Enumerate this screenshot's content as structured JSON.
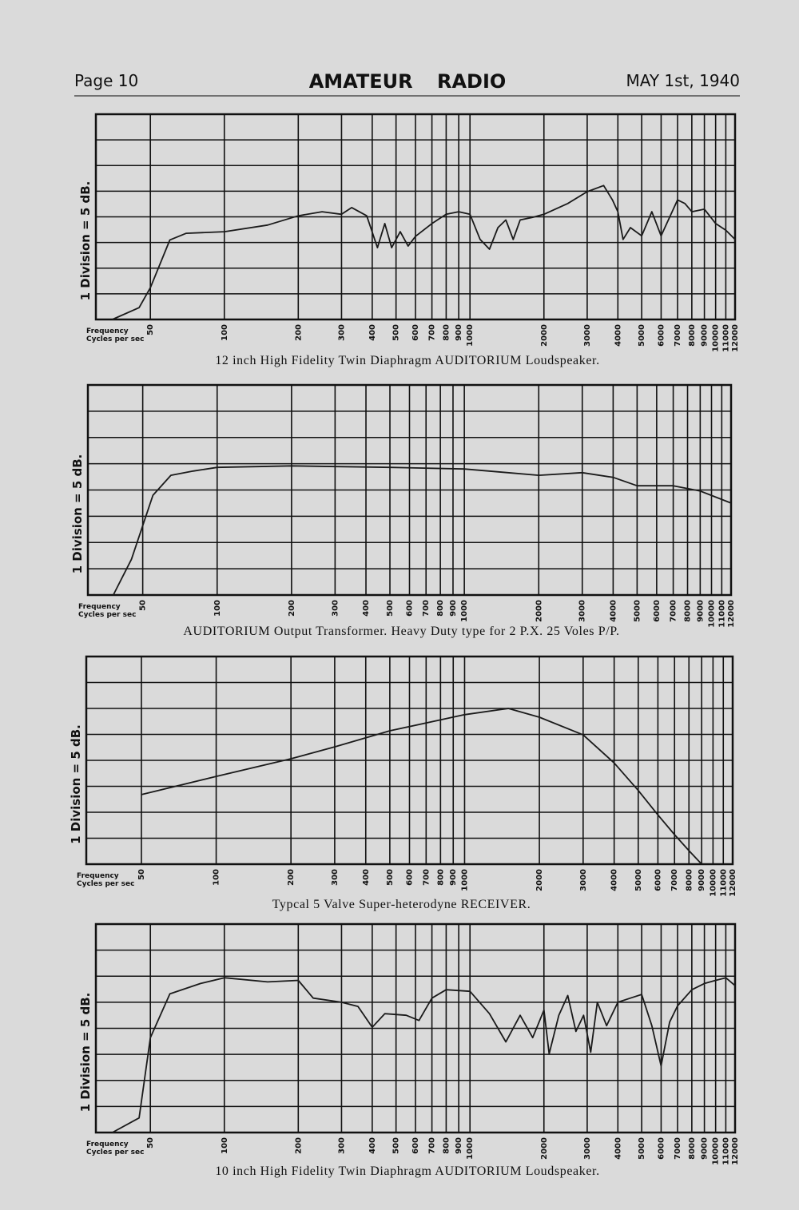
{
  "header": {
    "page": "Page 10",
    "title": "AMATEUR RADIO",
    "date": "MAY 1st, 1940"
  },
  "chart_data": [
    {
      "type": "line",
      "title": "12 inch High Fidelity Twin Diaphragm AUDITORIUM Loudspeaker.",
      "y_label": "1 Division = 5 dB.",
      "x_label": [
        "Frequency",
        "Cycles per sec"
      ],
      "log_x": true,
      "xlim": [
        30,
        12000
      ],
      "ylim": [
        0,
        40
      ],
      "xticks": [
        50,
        100,
        200,
        300,
        400,
        500,
        600,
        700,
        800,
        900,
        1000,
        2000,
        3000,
        4000,
        5000,
        6000,
        7000,
        8000,
        9000,
        10000,
        11000,
        12000
      ],
      "ygrid": [
        5,
        10,
        15,
        20,
        25,
        30,
        35
      ],
      "color": "#1a1a1a",
      "x": [
        35,
        45,
        50,
        60,
        70,
        100,
        150,
        200,
        250,
        300,
        330,
        380,
        420,
        450,
        480,
        520,
        560,
        600,
        700,
        800,
        900,
        1000,
        1100,
        1200,
        1300,
        1400,
        1500,
        1600,
        1800,
        2000,
        2500,
        3000,
        3500,
        3800,
        4000,
        4200,
        4500,
        5000,
        5500,
        6000,
        7000,
        7500,
        8000,
        9000,
        10000,
        11000,
        12000
      ],
      "values": [
        0,
        2.3,
        6.2,
        15.5,
        16.8,
        17.1,
        18.4,
        20.2,
        21,
        20.5,
        21.8,
        20.2,
        14,
        18.7,
        14,
        17.1,
        14.3,
        16.2,
        18.7,
        20.5,
        21,
        20.5,
        15.6,
        13.7,
        17.9,
        19.4,
        15.6,
        19.4,
        19.9,
        20.5,
        22.6,
        24.9,
        26.1,
        23.3,
        21,
        15.6,
        17.9,
        16.3,
        21,
        16.3,
        23.3,
        22.6,
        21,
        21.5,
        18.7,
        17.4,
        15.6
      ]
    },
    {
      "type": "line",
      "title": "AUDITORIUM Output Transformer.  Heavy Duty type for 2 P.X. 25 Voles P/P.",
      "y_label": "1 Division = 5 dB.",
      "x_label": [
        "Frequency",
        "Cycles per sec"
      ],
      "log_x": true,
      "xlim": [
        30,
        12000
      ],
      "ylim": [
        0,
        40
      ],
      "xticks": [
        50,
        100,
        200,
        300,
        400,
        500,
        600,
        700,
        800,
        900,
        1000,
        2000,
        3000,
        4000,
        5000,
        6000,
        7000,
        8000,
        9000,
        10000,
        11000,
        12000
      ],
      "ygrid": [
        5,
        10,
        15,
        20,
        25,
        30,
        35
      ],
      "color": "#1a1a1a",
      "x": [
        38,
        45,
        55,
        65,
        80,
        100,
        200,
        500,
        1000,
        1500,
        2000,
        3000,
        4000,
        5000,
        7000,
        9000,
        12000
      ],
      "values": [
        0,
        6.8,
        19,
        22.8,
        23.6,
        24.3,
        24.6,
        24.3,
        24,
        23.3,
        22.8,
        23.3,
        22.4,
        20.8,
        20.8,
        19.8,
        17.5
      ]
    },
    {
      "type": "line",
      "title": "Typcal 5 Valve Super-heterodyne RECEIVER.",
      "y_label": "1 Division = 5 dB.",
      "x_label": [
        "Frequency",
        "Cycles per sec"
      ],
      "log_x": true,
      "xlim": [
        30,
        12000
      ],
      "ylim": [
        0,
        40
      ],
      "xticks": [
        50,
        100,
        200,
        300,
        400,
        500,
        600,
        700,
        800,
        900,
        1000,
        2000,
        3000,
        4000,
        5000,
        6000,
        7000,
        8000,
        9000,
        10000,
        11000,
        12000
      ],
      "ygrid": [
        5,
        10,
        15,
        20,
        25,
        30,
        35
      ],
      "color": "#1a1a1a",
      "x": [
        50,
        100,
        200,
        300,
        500,
        1000,
        1500,
        2000,
        3000,
        4000,
        5000,
        6000,
        7000,
        8000,
        9000
      ],
      "values": [
        13.4,
        16.9,
        20.3,
        22.6,
        25.7,
        28.8,
        30,
        28.3,
        24.9,
        19.5,
        14.2,
        9.5,
        5.7,
        2.6,
        0
      ]
    },
    {
      "type": "line",
      "title": "10 inch High Fidelity Twin Diaphragm AUDITORIUM Loudspeaker.",
      "y_label": "1 Division = 5 dB.",
      "x_label": [
        "Frequency",
        "Cycles per sec"
      ],
      "log_x": true,
      "xlim": [
        30,
        12000
      ],
      "ylim": [
        0,
        40
      ],
      "xticks": [
        50,
        100,
        200,
        300,
        400,
        500,
        600,
        700,
        800,
        900,
        1000,
        2000,
        3000,
        4000,
        5000,
        6000,
        7000,
        8000,
        9000,
        10000,
        11000,
        12000
      ],
      "ygrid": [
        5,
        10,
        15,
        20,
        25,
        30,
        35
      ],
      "color": "#1a1a1a",
      "x": [
        35,
        45,
        50,
        60,
        80,
        100,
        150,
        200,
        230,
        300,
        350,
        400,
        450,
        550,
        620,
        700,
        800,
        1000,
        1200,
        1400,
        1600,
        1800,
        2000,
        2100,
        2300,
        2500,
        2700,
        2900,
        3100,
        3300,
        3600,
        4000,
        4500,
        5000,
        5500,
        6000,
        6500,
        7000,
        8000,
        9000,
        10000,
        11000,
        12000
      ],
      "values": [
        0,
        2.8,
        18.2,
        26.6,
        28.6,
        29.7,
        28.9,
        29.2,
        25.8,
        25,
        24.2,
        20.2,
        22.8,
        22.5,
        21.5,
        25.8,
        27.4,
        27.1,
        22.8,
        17.4,
        22.5,
        18.2,
        23.5,
        15.1,
        22.5,
        26.3,
        19.4,
        22.5,
        15.4,
        25,
        20.5,
        25,
        25.8,
        26.5,
        20.5,
        12.8,
        21.2,
        24.3,
        27.4,
        28.6,
        29.2,
        29.7,
        28.2
      ]
    }
  ]
}
